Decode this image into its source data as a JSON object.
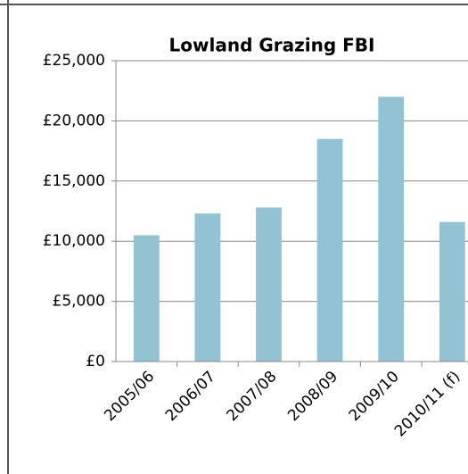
{
  "chart_data": {
    "type": "bar",
    "title": "Lowland Grazing FBI",
    "categories": [
      "2005/06",
      "2006/07",
      "2007/08",
      "2008/09",
      "2009/10",
      "2010/11 (f)"
    ],
    "values": [
      10500,
      12300,
      12800,
      18500,
      22000,
      11600
    ],
    "color": "#93c3d3",
    "ylim": [
      0,
      25000
    ],
    "yticks": [
      {
        "value": 0,
        "label": "£0"
      },
      {
        "value": 5000,
        "label": "£5,000"
      },
      {
        "value": 10000,
        "label": "£10,000"
      },
      {
        "value": 15000,
        "label": "£15,000"
      },
      {
        "value": 20000,
        "label": "£20,000"
      },
      {
        "value": 25000,
        "label": "£25,000"
      }
    ],
    "grid": true
  }
}
